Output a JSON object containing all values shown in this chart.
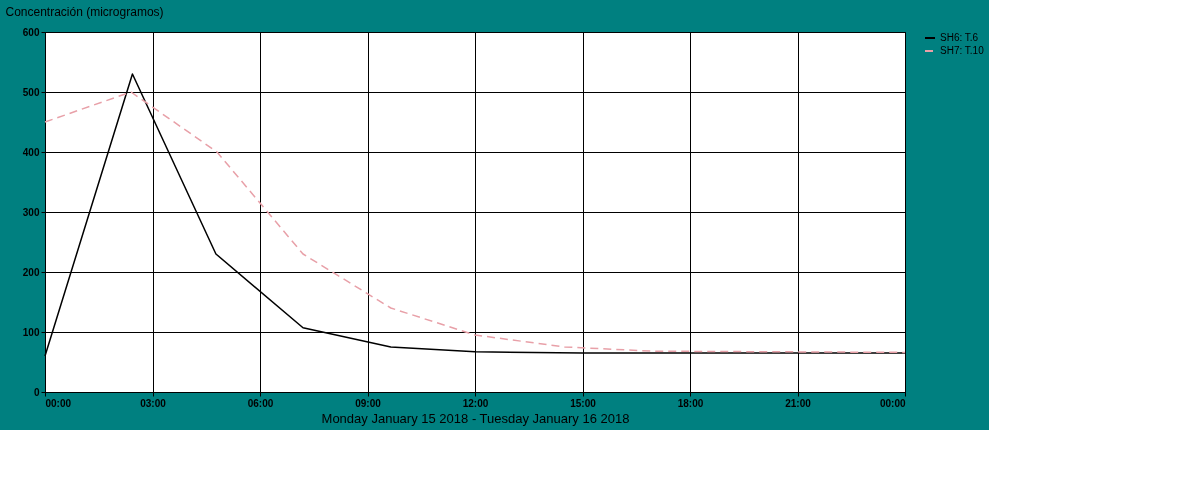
{
  "chart_data": {
    "type": "line",
    "ylabel": "Concentración (microgramos)",
    "xlabel": "Monday January 15 2018 - Tuesday January 16 2018",
    "series": [
      {
        "name": "SH6: T.6",
        "color": "#000000",
        "line_style": "solid",
        "x": [
          0,
          2.44,
          4.77,
          7.2,
          9.65,
          12,
          15,
          18,
          24
        ],
        "values": [
          60,
          530,
          230,
          107,
          75,
          67,
          65,
          65,
          65
        ]
      },
      {
        "name": "SH7: T.10",
        "color": "#e8a0a8",
        "line_style": "dashed",
        "x": [
          0,
          2.4,
          4.8,
          7.2,
          9.65,
          12,
          14.5,
          17,
          24
        ],
        "values": [
          450,
          500,
          400,
          230,
          140,
          95,
          75,
          68,
          66
        ]
      }
    ],
    "xlim": [
      0,
      24
    ],
    "xticks": [
      {
        "value": 0,
        "label": "00:00"
      },
      {
        "value": 3,
        "label": "03:00"
      },
      {
        "value": 6,
        "label": "06:00"
      },
      {
        "value": 9,
        "label": "09:00"
      },
      {
        "value": 12,
        "label": "12:00"
      },
      {
        "value": 15,
        "label": "15:00"
      },
      {
        "value": 18,
        "label": "18:00"
      },
      {
        "value": 21,
        "label": "21:00"
      },
      {
        "value": 24,
        "label": "00:00"
      }
    ],
    "ylim": [
      0,
      600
    ],
    "yticks": [
      0,
      100,
      200,
      300,
      400,
      500,
      600
    ],
    "grid": true,
    "legend": "right",
    "marker": "none"
  }
}
